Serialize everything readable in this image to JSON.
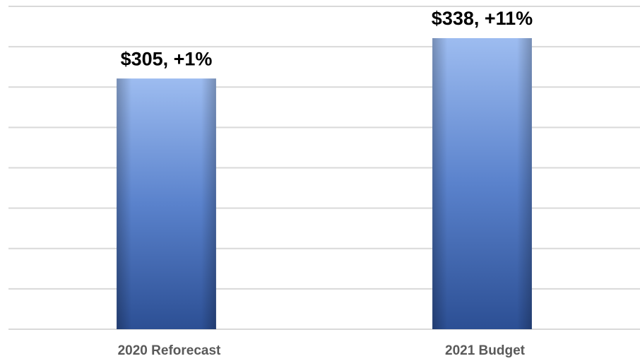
{
  "chart_data": {
    "type": "bar",
    "categories": [
      "2020 Reforecast",
      "2021 Budget"
    ],
    "values": [
      305,
      338
    ],
    "value_labels": [
      "$305, +1%",
      "$338, +11%"
    ],
    "color": "#4472c4",
    "ylim": [
      100,
      364
    ],
    "yticks": [
      100,
      133,
      166,
      199,
      232,
      265,
      298,
      331,
      364
    ],
    "grid": true
  }
}
